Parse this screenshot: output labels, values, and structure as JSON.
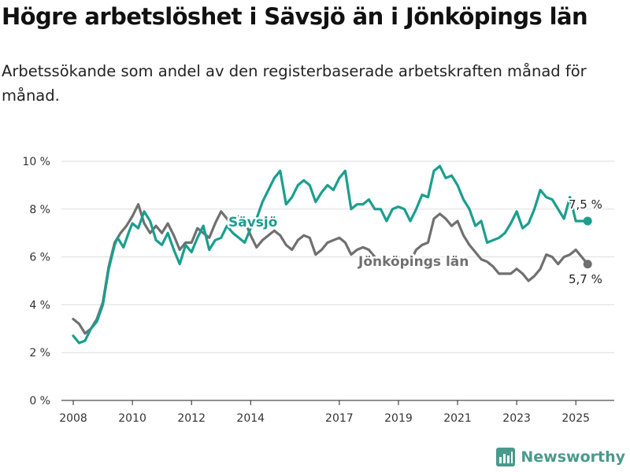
{
  "header": {
    "title": "Högre arbetslöshet i Sävsjö än i Jönköpings län",
    "subtitle": "Arbetssökande som andel av den registerbaserade arbetskraften månad för månad."
  },
  "brand": {
    "name": "Newsworthy",
    "icon": "newsworthy-logo-icon",
    "color": "#4a9a8c"
  },
  "chart_data": {
    "type": "line",
    "ylim": [
      0,
      10
    ],
    "xlim": [
      2007.6,
      2026.3
    ],
    "y_ticks": [
      0,
      2,
      4,
      6,
      8,
      10
    ],
    "y_tick_labels": [
      "0 %",
      "2 %",
      "4 %",
      "6 %",
      "8 %",
      "10 %"
    ],
    "x_ticks": [
      2008,
      2010,
      2012,
      2014,
      2017,
      2019,
      2021,
      2023,
      2025
    ],
    "x_tick_labels": [
      "2008",
      "2010",
      "2012",
      "2014",
      "2017",
      "2019",
      "2021",
      "2023",
      "2025"
    ],
    "grid": "horizontal",
    "series": [
      {
        "name": "Jönköpings län",
        "color": "#707070",
        "end_label": "5,7 %",
        "x": [
          2008.0,
          2008.2,
          2008.4,
          2008.6,
          2008.8,
          2009.0,
          2009.2,
          2009.4,
          2009.6,
          2009.8,
          2009.9,
          2010.0,
          2010.2,
          2010.4,
          2010.6,
          2010.8,
          2011.0,
          2011.2,
          2011.4,
          2011.6,
          2011.8,
          2012.0,
          2012.2,
          2012.4,
          2012.6,
          2012.8,
          2013.0,
          2013.2,
          2013.4,
          2013.6,
          2013.8,
          2014.0,
          2014.2,
          2014.4,
          2014.6,
          2014.8,
          2015.0,
          2015.2,
          2015.4,
          2015.6,
          2015.8,
          2016.0,
          2016.2,
          2016.4,
          2016.6,
          2016.8,
          2017.0,
          2017.2,
          2017.4,
          2017.6,
          2017.8,
          2018.0,
          2018.2,
          2018.4,
          2018.6,
          2018.8,
          2019.0,
          2019.2,
          2019.4,
          2019.6,
          2019.8,
          2020.0,
          2020.2,
          2020.4,
          2020.6,
          2020.8,
          2021.0,
          2021.2,
          2021.4,
          2021.6,
          2021.8,
          2022.0,
          2022.2,
          2022.4,
          2022.6,
          2022.8,
          2023.0,
          2023.2,
          2023.4,
          2023.6,
          2023.8,
          2024.0,
          2024.2,
          2024.4,
          2024.6,
          2024.8,
          2025.0,
          2025.2,
          2025.4
        ],
        "y": [
          3.4,
          3.2,
          2.8,
          3.0,
          3.4,
          4.1,
          5.6,
          6.6,
          7.0,
          7.3,
          7.5,
          7.7,
          8.2,
          7.4,
          7.0,
          7.3,
          7.0,
          7.4,
          6.9,
          6.3,
          6.6,
          6.6,
          7.2,
          7.0,
          6.8,
          7.4,
          7.9,
          7.6,
          7.3,
          7.7,
          7.5,
          6.9,
          6.4,
          6.7,
          6.9,
          7.1,
          6.9,
          6.5,
          6.3,
          6.7,
          6.9,
          6.8,
          6.1,
          6.3,
          6.6,
          6.7,
          6.8,
          6.6,
          6.1,
          6.3,
          6.4,
          6.3,
          6.0,
          5.6,
          5.8,
          6.0,
          6.0,
          5.6,
          5.8,
          6.3,
          6.5,
          6.6,
          7.6,
          7.8,
          7.6,
          7.3,
          7.5,
          6.9,
          6.5,
          6.2,
          5.9,
          5.8,
          5.6,
          5.3,
          5.3,
          5.3,
          5.5,
          5.3,
          5.0,
          5.2,
          5.5,
          6.1,
          6.0,
          5.7,
          6.0,
          6.1,
          6.3,
          6.0,
          5.7
        ]
      },
      {
        "name": "Sävsjö",
        "color": "#1a9e8e",
        "end_label": "7,5 %",
        "x": [
          2008.0,
          2008.2,
          2008.4,
          2008.6,
          2008.8,
          2009.0,
          2009.2,
          2009.4,
          2009.5,
          2009.7,
          2009.9,
          2010.0,
          2010.2,
          2010.4,
          2010.6,
          2010.8,
          2011.0,
          2011.2,
          2011.4,
          2011.6,
          2011.8,
          2012.0,
          2012.2,
          2012.4,
          2012.6,
          2012.8,
          2013.0,
          2013.2,
          2013.4,
          2013.6,
          2013.8,
          2014.0,
          2014.2,
          2014.4,
          2014.6,
          2014.8,
          2015.0,
          2015.2,
          2015.4,
          2015.6,
          2015.8,
          2016.0,
          2016.2,
          2016.4,
          2016.6,
          2016.8,
          2017.0,
          2017.2,
          2017.4,
          2017.6,
          2017.8,
          2018.0,
          2018.2,
          2018.4,
          2018.6,
          2018.8,
          2019.0,
          2019.2,
          2019.4,
          2019.6,
          2019.8,
          2020.0,
          2020.2,
          2020.4,
          2020.6,
          2020.8,
          2021.0,
          2021.2,
          2021.4,
          2021.6,
          2021.8,
          2022.0,
          2022.2,
          2022.4,
          2022.6,
          2022.8,
          2023.0,
          2023.2,
          2023.4,
          2023.6,
          2023.8,
          2024.0,
          2024.2,
          2024.4,
          2024.6,
          2024.8,
          2025.0,
          2025.2,
          2025.4
        ],
        "y": [
          2.7,
          2.4,
          2.5,
          3.0,
          3.3,
          4.0,
          5.5,
          6.5,
          6.8,
          6.4,
          7.1,
          7.4,
          7.2,
          7.9,
          7.5,
          6.7,
          6.5,
          7.0,
          6.3,
          5.7,
          6.5,
          6.2,
          6.8,
          7.3,
          6.3,
          6.7,
          6.8,
          7.3,
          7.0,
          6.8,
          6.6,
          7.2,
          7.6,
          8.3,
          8.8,
          9.3,
          9.6,
          8.2,
          8.5,
          9.0,
          9.2,
          9.0,
          8.3,
          8.7,
          9.0,
          8.8,
          9.3,
          9.6,
          8.0,
          8.2,
          8.2,
          8.4,
          8.0,
          8.0,
          7.5,
          8.0,
          8.1,
          8.0,
          7.5,
          8.0,
          8.6,
          8.5,
          9.6,
          9.8,
          9.3,
          9.4,
          9.0,
          8.4,
          8.0,
          7.3,
          7.5,
          6.6,
          6.7,
          6.8,
          7.0,
          7.4,
          7.9,
          7.2,
          7.4,
          8.0,
          8.8,
          8.5,
          8.4,
          8.0,
          7.6,
          8.5,
          7.5,
          7.5,
          7.5
        ]
      }
    ]
  }
}
